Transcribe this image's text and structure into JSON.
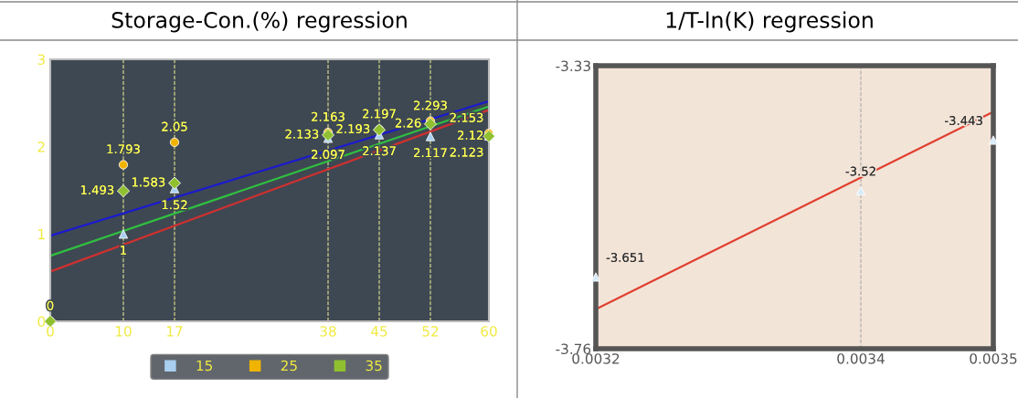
{
  "chart_data": [
    {
      "type": "scatter",
      "title": "Storage-Con.(%) regression",
      "xlim": [
        0,
        60
      ],
      "xticks": [
        0,
        10,
        17,
        38,
        45,
        52,
        60
      ],
      "ylim": [
        0,
        3
      ],
      "yticks": [
        0,
        1,
        2,
        3
      ],
      "grid": "x",
      "legend": "bottom",
      "series": [
        {
          "name": "15",
          "color": "#a8cff0",
          "marker": "triangle",
          "x": [
            0,
            10,
            17,
            38,
            45,
            52,
            60
          ],
          "values": [
            0,
            1,
            1.52,
            2.097,
            2.137,
            2.117,
            2.123
          ],
          "value_labels": [
            null,
            "1",
            "1.52",
            "2.097",
            "2.137",
            "2.117",
            "2.123"
          ]
        },
        {
          "name": "25",
          "color": "#f0b400",
          "marker": "circle",
          "x": [
            0,
            10,
            17,
            38,
            45,
            52,
            60
          ],
          "values": [
            0,
            1.793,
            2.05,
            2.163,
            2.197,
            2.293,
            2.153
          ],
          "value_labels": [
            "0",
            "1.793",
            "2.05",
            "2.163",
            "2.197",
            "2.293",
            "2.153"
          ]
        },
        {
          "name": "35",
          "color": "#90c030",
          "marker": "diamond",
          "x": [
            0,
            10,
            17,
            38,
            45,
            52,
            60
          ],
          "values": [
            0,
            1.493,
            1.583,
            2.133,
            2.193,
            2.26,
            2.12
          ],
          "value_labels": [
            null,
            "1.493",
            "1.583",
            "2.133",
            "2.193",
            "2.26",
            "2.12"
          ]
        },
        {
          "type": "line",
          "color": "#1a1ad0",
          "x": [
            0,
            60
          ],
          "values": [
            0.98,
            2.52
          ]
        },
        {
          "type": "line",
          "color": "#30c040",
          "x": [
            0,
            60
          ],
          "values": [
            0.75,
            2.46
          ]
        },
        {
          "type": "line",
          "color": "#d03030",
          "x": [
            0,
            60
          ],
          "values": [
            0.57,
            2.42
          ]
        }
      ]
    },
    {
      "type": "scatter",
      "title": "1/T-ln(K) regression",
      "xlim": [
        0.0032,
        0.0035
      ],
      "xticks": [
        {
          "value": 0.0032,
          "label": "0.0032"
        },
        {
          "value": 0.0034,
          "label": "0.0034"
        },
        {
          "value": 0.0035,
          "label": "0.0035"
        }
      ],
      "ylim": [
        -3.76,
        -3.33
      ],
      "yticks": [
        -3.76,
        -3.33
      ],
      "grid": "x",
      "series": [
        {
          "color": "#d8ecf8",
          "marker": "triangle",
          "x": [
            0.0032,
            0.0034,
            0.0035
          ],
          "values": [
            -3.651,
            -3.52,
            -3.443
          ],
          "value_labels": [
            "-3.651",
            "-3.52",
            "-3.443"
          ]
        },
        {
          "type": "line",
          "color": "#e04030",
          "x": [
            0.0032,
            0.0035
          ],
          "values": [
            -3.7,
            -3.4
          ]
        }
      ]
    }
  ]
}
